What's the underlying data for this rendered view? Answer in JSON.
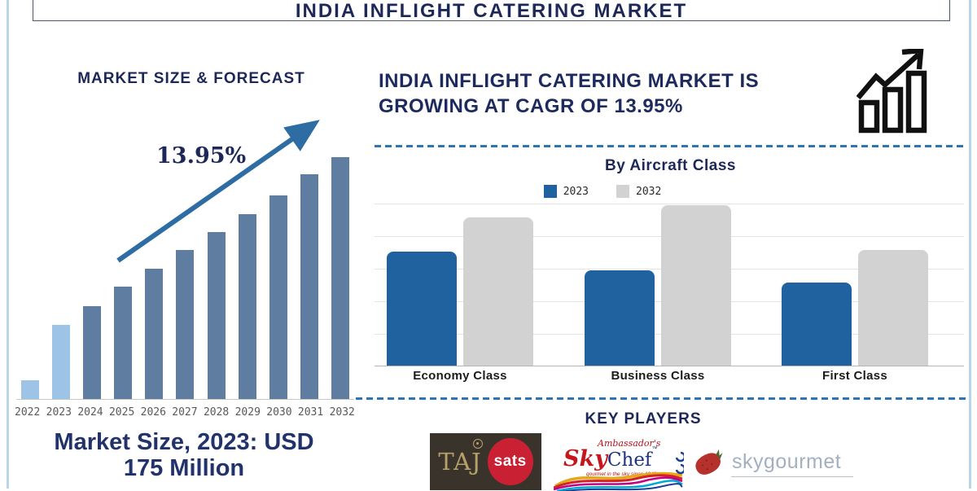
{
  "palette": {
    "navy": "#1e2858",
    "bar_light": "#9dc3e6",
    "bar_dark": "#5e7da1",
    "arrow_blue": "#2e6da4",
    "bar_blue": "#2062a0",
    "bar_gray": "#d2d2d2",
    "dashed_blue": "#2e75b6",
    "frame_blue": "#b9d5ea",
    "axis_gray": "#c8c8c8",
    "year_gray": "#595959",
    "icon_black": "#111111"
  },
  "header": {
    "title": "INDIA INFLIGHT CATERING MARKET"
  },
  "left_panel": {
    "chart_title": "MARKET SIZE & FORECAST",
    "cagr_label": "13.95%",
    "market_size_line1": "Market Size, 2023: USD",
    "market_size_line2": "175 Million"
  },
  "right_panel": {
    "headline": "INDIA INFLIGHT CATERING MARKET IS GROWING AT CAGR OF 13.95%",
    "growth_icon": "growth-chart-icon"
  },
  "key_players": {
    "title": "KEY PLAYERS",
    "players": [
      {
        "name": "TajSATS",
        "logo_text_primary": "TAJ",
        "logo_text_secondary": "sats"
      },
      {
        "name": "Ambassador's SkyChef",
        "logo_text_script": "Ambassador's",
        "logo_text_sky": "Sky",
        "logo_text_chef": "Chef",
        "tagline": "gourmet in the sky since 1942"
      },
      {
        "name": "Skygourmet",
        "logo_text": "skygourmet"
      }
    ]
  },
  "chart_data": [
    {
      "type": "bar",
      "title": "MARKET SIZE & FORECAST",
      "categories": [
        "2022",
        "2023",
        "2024",
        "2025",
        "2026",
        "2027",
        "2028",
        "2029",
        "2030",
        "2031",
        "2032"
      ],
      "values": [
        44,
        175,
        219,
        265,
        308,
        352,
        394,
        437,
        481,
        531,
        571
      ],
      "unit": "USD Million (2023 value labeled on image; other years estimated from bar heights)",
      "highlight_categories": [
        "2022",
        "2023"
      ],
      "annotation": "13.95%",
      "xlabel": "",
      "ylabel": "",
      "grid": false,
      "legend": "none"
    },
    {
      "type": "bar",
      "title": "By Aircraft Class",
      "categories": [
        "Economy Class",
        "Business Class",
        "First Class"
      ],
      "series": [
        {
          "name": "2023",
          "values": [
            140,
            117,
            102
          ]
        },
        {
          "name": "2032",
          "values": [
            182,
            197,
            142
          ]
        }
      ],
      "unit": "relative index (no value axis shown on image)",
      "ylim": [
        0,
        200
      ],
      "grid": true,
      "legend_position": "top"
    }
  ]
}
